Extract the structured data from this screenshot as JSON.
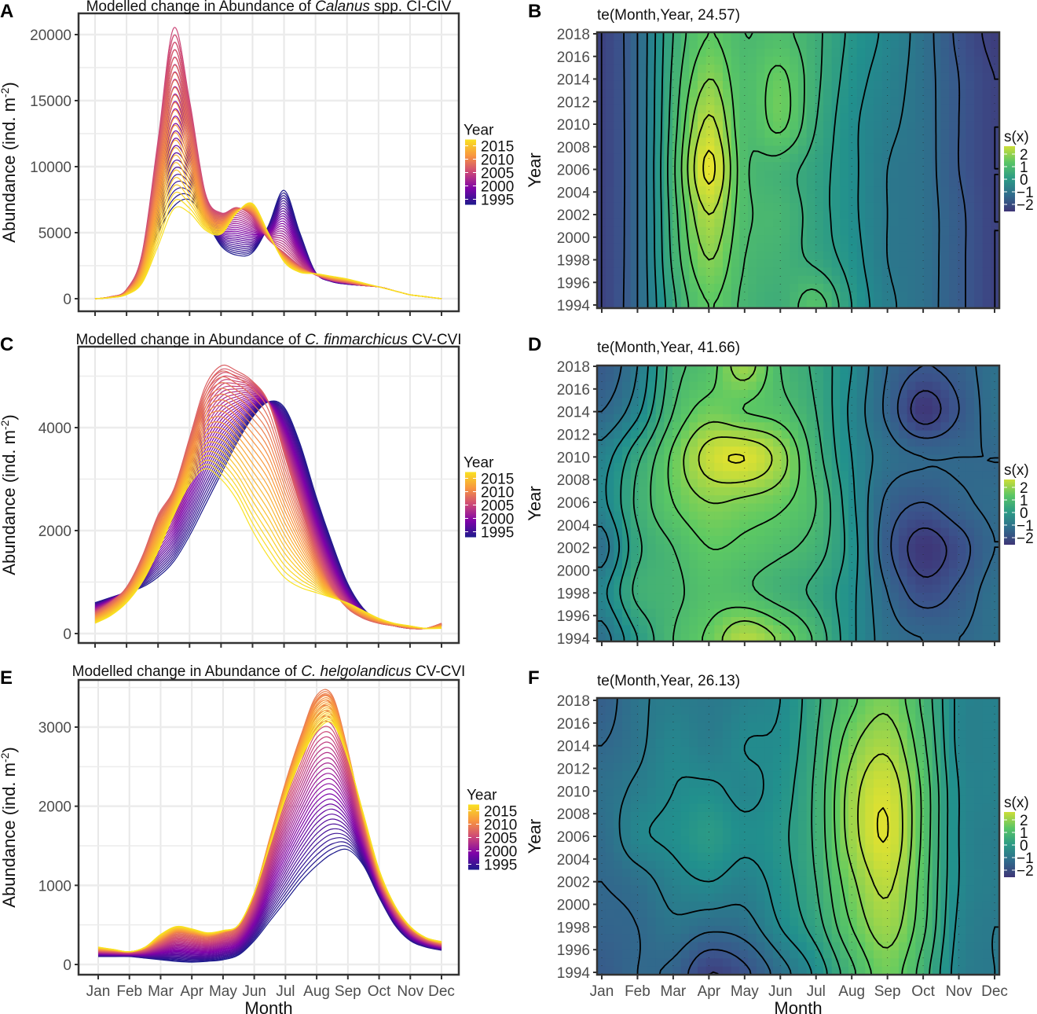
{
  "chart_data": [
    {
      "panel": "A",
      "type": "line",
      "title": {
        "prefix": "Modelled change in Abundance of ",
        "italic": "Calanus",
        "suffix": " spp. CI-CIV"
      },
      "ylabel": "Abundance (ind. m",
      "ylabel_sup": "-2",
      "ylabel_end": ")",
      "xlabel": "",
      "ylim": [
        0,
        21000
      ],
      "yticks": [
        "0",
        "5000",
        "10000",
        "15000",
        "20000"
      ],
      "x": [
        1,
        1.5,
        2,
        2.5,
        3,
        3.5,
        4,
        4.5,
        5,
        5.5,
        6,
        6.5,
        7,
        7.5,
        8,
        8.5,
        9,
        9.5,
        10,
        10.5,
        11,
        11.5,
        12
      ],
      "legend": {
        "title": "Year",
        "labels": [
          "2015",
          "2010",
          "2005",
          "2000",
          "1995"
        ]
      },
      "year_range": [
        1994,
        2018
      ],
      "keyframes": [
        {
          "year": 1994,
          "values": [
            0,
            100,
            500,
            2000,
            5000,
            7000,
            7500,
            6000,
            4000,
            3300,
            3500,
            5500,
            8200,
            5000,
            2000,
            1300,
            1100,
            1000,
            900,
            600,
            300,
            150,
            0
          ]
        },
        {
          "year": 2006,
          "values": [
            0,
            150,
            700,
            3500,
            12000,
            20500,
            15000,
            8000,
            6500,
            6900,
            6200,
            4500,
            3500,
            2500,
            1800,
            1400,
            1200,
            1000,
            900,
            600,
            300,
            150,
            0
          ]
        },
        {
          "year": 2018,
          "values": [
            0,
            80,
            300,
            1200,
            4000,
            6800,
            6500,
            5200,
            4900,
            6500,
            7200,
            5000,
            2800,
            2000,
            1900,
            1700,
            1500,
            1200,
            900,
            600,
            300,
            150,
            0
          ]
        }
      ]
    },
    {
      "panel": "C",
      "type": "line",
      "title": {
        "prefix": "Modelled change in Abundance of ",
        "italic": "C. finmarchicus",
        "suffix": " CV-CVI"
      },
      "ylabel": "Abundance (ind. m",
      "ylabel_sup": "-2",
      "ylabel_end": ")",
      "xlabel": "",
      "ylim": [
        0,
        5500
      ],
      "yticks": [
        "0",
        "2000",
        "4000"
      ],
      "x": [
        1,
        1.5,
        2,
        2.5,
        3,
        3.5,
        4,
        4.5,
        5,
        5.5,
        6,
        6.5,
        7,
        7.5,
        8,
        8.5,
        9,
        9.5,
        10,
        10.5,
        11,
        11.5,
        12
      ],
      "legend": {
        "title": "Year",
        "labels": [
          "2015",
          "2010",
          "2005",
          "2000",
          "1995"
        ]
      },
      "year_range": [
        1994,
        2018
      ],
      "keyframes": [
        {
          "year": 1994,
          "values": [
            600,
            700,
            800,
            900,
            1100,
            1400,
            1900,
            2500,
            3100,
            3700,
            4200,
            4500,
            4400,
            3700,
            2700,
            1800,
            1000,
            500,
            250,
            150,
            100,
            100,
            150
          ]
        },
        {
          "year": 2008,
          "values": [
            400,
            600,
            900,
            1500,
            2300,
            2800,
            3800,
            4800,
            5200,
            5100,
            4900,
            4500,
            3500,
            2500,
            1600,
            900,
            500,
            300,
            200,
            150,
            100,
            100,
            200
          ]
        },
        {
          "year": 2018,
          "values": [
            200,
            350,
            600,
            1000,
            1600,
            2300,
            2900,
            3200,
            3000,
            2600,
            2000,
            1500,
            1100,
            900,
            800,
            700,
            600,
            450,
            300,
            200,
            150,
            100,
            100
          ]
        }
      ]
    },
    {
      "panel": "E",
      "type": "line",
      "title": {
        "prefix": "Modelled change in Abundance of ",
        "italic": "C. helgolandicus",
        "suffix": " CV-CVI"
      },
      "ylabel": "Abundance (ind. m",
      "ylabel_sup": "-2",
      "ylabel_end": ")",
      "xlabel": "Month",
      "ylim": [
        0,
        3600
      ],
      "yticks": [
        "0",
        "1000",
        "2000",
        "3000"
      ],
      "xticks": [
        "Jan",
        "Feb",
        "Mar",
        "Apr",
        "May",
        "Jun",
        "Jul",
        "Aug",
        "Sep",
        "Oct",
        "Nov",
        "Dec"
      ],
      "x": [
        1,
        1.5,
        2,
        2.5,
        3,
        3.5,
        4,
        4.5,
        5,
        5.5,
        6,
        6.5,
        7,
        7.5,
        8,
        8.5,
        9,
        9.5,
        10,
        10.5,
        11,
        11.5,
        12
      ],
      "legend": {
        "title": "Year",
        "labels": [
          "2015",
          "2010",
          "2005",
          "2000",
          "1995"
        ]
      },
      "year_range": [
        1994,
        2018
      ],
      "keyframes": [
        {
          "year": 1994,
          "values": [
            100,
            100,
            100,
            80,
            60,
            40,
            30,
            40,
            60,
            120,
            300,
            550,
            800,
            1050,
            1250,
            1400,
            1450,
            1250,
            850,
            500,
            300,
            220,
            180
          ]
        },
        {
          "year": 2010,
          "values": [
            180,
            170,
            160,
            200,
            300,
            400,
            380,
            350,
            400,
            500,
            900,
            1600,
            2300,
            2900,
            3400,
            3400,
            2700,
            1800,
            1100,
            700,
            450,
            320,
            260
          ]
        },
        {
          "year": 2018,
          "values": [
            220,
            190,
            160,
            220,
            380,
            480,
            450,
            400,
            430,
            500,
            900,
            1500,
            2100,
            2600,
            2950,
            3050,
            2600,
            1900,
            1200,
            750,
            480,
            340,
            290
          ]
        }
      ]
    },
    {
      "panel": "B",
      "type": "heatmap",
      "title": "te(Month,Year, 24.57)",
      "ylabel": "Year",
      "xlabel": "",
      "yticks": [
        "1994",
        "1996",
        "1998",
        "2000",
        "2002",
        "2004",
        "2006",
        "2008",
        "2010",
        "2012",
        "2014",
        "2016",
        "2018"
      ],
      "legend": {
        "title": "s(x)",
        "labels": [
          "2",
          "1",
          "0",
          "−1",
          "−2"
        ]
      },
      "months": [
        1,
        2,
        3,
        4,
        5,
        6,
        7,
        8,
        9,
        10,
        11,
        12
      ],
      "years": [
        1994,
        1998,
        2002,
        2006,
        2010,
        2014,
        2018
      ],
      "z": [
        [
          -2,
          -1.2,
          0.3,
          1.2,
          0.7,
          0.5,
          1.0,
          0,
          -0.7,
          -1,
          -1.5,
          -2
        ],
        [
          -2,
          -1.2,
          0.5,
          1.6,
          0.8,
          0.6,
          0.3,
          -0.2,
          -0.8,
          -1,
          -1.5,
          -2
        ],
        [
          -2,
          -1.2,
          0.6,
          2.0,
          0.9,
          0.7,
          0.2,
          -0.3,
          -0.8,
          -1,
          -1.5,
          -2
        ],
        [
          -2,
          -1.2,
          0.7,
          2.5,
          0.9,
          0.6,
          0.2,
          -0.3,
          -0.8,
          -1,
          -1.6,
          -2
        ],
        [
          -2,
          -1.2,
          0.6,
          2.1,
          0.9,
          1.3,
          0.4,
          -0.3,
          -0.7,
          -1,
          -1.6,
          -2
        ],
        [
          -2,
          -1.2,
          0.5,
          1.6,
          0.9,
          1.3,
          0.5,
          -0.2,
          -0.6,
          -1,
          -1.6,
          -2
        ],
        [
          -2,
          -1.2,
          0.4,
          1.2,
          0.8,
          0.9,
          0.5,
          -0.1,
          -0.5,
          -1,
          -1.7,
          -2.1
        ]
      ]
    },
    {
      "panel": "D",
      "type": "heatmap",
      "title": "te(Month,Year, 41.66)",
      "ylabel": "Year",
      "xlabel": "",
      "yticks": [
        "1994",
        "1996",
        "1998",
        "2000",
        "2002",
        "2004",
        "2006",
        "2008",
        "2010",
        "2012",
        "2014",
        "2016",
        "2018"
      ],
      "legend": {
        "title": "s(x)",
        "labels": [
          "2",
          "1",
          "0",
          "−1",
          "−2"
        ]
      },
      "months": [
        1,
        2,
        3,
        4,
        5,
        6,
        7,
        8,
        9,
        10,
        11,
        12
      ],
      "years": [
        1994,
        1998,
        2002,
        2006,
        2010,
        2014,
        2018
      ],
      "z": [
        [
          -1,
          0,
          0.8,
          1.3,
          2,
          1.5,
          0.7,
          -0.3,
          -1,
          -1.2,
          -1.2,
          -1
        ],
        [
          -0.5,
          0.5,
          0.7,
          1.0,
          0.9,
          0.6,
          0.3,
          -0.3,
          -1.2,
          -1.8,
          -1.5,
          -1
        ],
        [
          -1,
          0.3,
          0.8,
          1.2,
          1.1,
          0.9,
          0.6,
          -0.2,
          -1.5,
          -2.2,
          -1.8,
          -1.2
        ],
        [
          -0.5,
          0.5,
          1.2,
          1.6,
          1.5,
          1.3,
          0.8,
          -0.3,
          -1.3,
          -1.6,
          -1.3,
          -1.1
        ],
        [
          -0.6,
          0.3,
          1.3,
          2.2,
          2.4,
          1.8,
          0.6,
          -0.4,
          -1,
          -1.2,
          -1.2,
          -1.2
        ],
        [
          -1.2,
          -0.5,
          0.8,
          1.4,
          1.2,
          1.0,
          0.4,
          -0.5,
          -1.3,
          -2.2,
          -1.6,
          -1
        ],
        [
          -1.5,
          -0.8,
          0.6,
          1.0,
          1.8,
          0.8,
          0.3,
          -0.4,
          -1.2,
          -1.6,
          -1.4,
          -1
        ]
      ]
    },
    {
      "panel": "F",
      "type": "heatmap",
      "title": "te(Month,Year, 26.13)",
      "ylabel": "Year",
      "xlabel": "Month",
      "xticks": [
        "Jan",
        "Feb",
        "Mar",
        "Apr",
        "May",
        "Jun",
        "Jul",
        "Aug",
        "Sep",
        "Oct",
        "Nov",
        "Dec"
      ],
      "yticks": [
        "1994",
        "1996",
        "1998",
        "2000",
        "2002",
        "2004",
        "2006",
        "2008",
        "2010",
        "2012",
        "2014",
        "2016",
        "2018"
      ],
      "legend": {
        "title": "s(x)",
        "labels": [
          "2",
          "1",
          "0",
          "−1",
          "−2"
        ]
      },
      "months": [
        1,
        2,
        3,
        4,
        5,
        6,
        7,
        8,
        9,
        10,
        11,
        12
      ],
      "years": [
        1994,
        1998,
        2002,
        2006,
        2010,
        2014,
        2018
      ],
      "z": [
        [
          -1.5,
          -1.2,
          -1.3,
          -2,
          -1.7,
          -1,
          -0.3,
          0.7,
          1.4,
          0.6,
          -0.6,
          -0.8
        ],
        [
          -1.3,
          -1.2,
          -0.9,
          -1.1,
          -1,
          -0.4,
          0.2,
          1.2,
          1.8,
          0.9,
          -0.5,
          -0.8
        ],
        [
          -1.2,
          -1.0,
          -0.6,
          -0.4,
          -0.6,
          -0.2,
          0.4,
          1.5,
          2.1,
          1.0,
          -0.4,
          -0.7
        ],
        [
          -1.1,
          -0.5,
          -0.3,
          0,
          -0.3,
          -0.1,
          0.5,
          1.8,
          2.4,
          1.1,
          -0.4,
          -0.7
        ],
        [
          -1.0,
          -0.7,
          -0.4,
          -0.3,
          -0.5,
          -0.2,
          0.5,
          1.8,
          2.3,
          1.1,
          -0.4,
          -0.6
        ],
        [
          -1.2,
          -0.9,
          -0.5,
          -0.7,
          -0.4,
          -0.3,
          0.4,
          1.5,
          1.9,
          0.9,
          -0.5,
          -0.6
        ],
        [
          -1.4,
          -0.9,
          -0.7,
          -0.8,
          -0.6,
          -0.4,
          0.3,
          1.1,
          1.5,
          0.7,
          -0.5,
          -0.6
        ]
      ]
    }
  ],
  "colors": {
    "frame": "#333333",
    "grid": "#e6e6e6",
    "contour": "#000000"
  }
}
